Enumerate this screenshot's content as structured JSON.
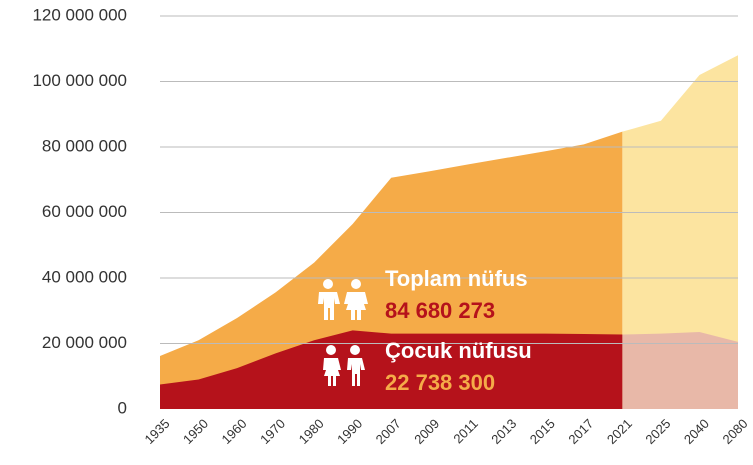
{
  "chart_data": {
    "type": "area",
    "categories": [
      "1935",
      "1950",
      "1960",
      "1970",
      "1980",
      "1990",
      "2007",
      "2009",
      "2011",
      "2013",
      "2015",
      "2017",
      "2021",
      "2025",
      "2040",
      "2080"
    ],
    "projection_from": "2021",
    "series": [
      {
        "name": "Toplam nüfus",
        "color": "#f5ab48",
        "projection_color": "#fce4a0",
        "label_color": "#b5121b",
        "values": [
          16200000,
          21000000,
          27800000,
          35600000,
          44700000,
          56500000,
          70600000,
          72600000,
          74700000,
          76700000,
          78700000,
          80800000,
          84680273,
          88000000,
          102000000,
          108000000
        ],
        "value_labels": [
          null,
          null,
          null,
          null,
          null,
          null,
          null,
          null,
          null,
          null,
          null,
          null,
          "84 680 273",
          null,
          null,
          null
        ]
      },
      {
        "name": "Çocuk nüfusu",
        "color": "#b5121b",
        "projection_color": "#e8b8a8",
        "label_color": "#f5ab48",
        "values": [
          7500000,
          9000000,
          12500000,
          17000000,
          21000000,
          24000000,
          23000000,
          23000000,
          23000000,
          23000000,
          23000000,
          22900000,
          22738300,
          23000000,
          23500000,
          20500000
        ],
        "value_labels": [
          null,
          null,
          null,
          null,
          null,
          null,
          null,
          null,
          null,
          null,
          null,
          null,
          "22 738 300",
          null,
          null,
          null
        ]
      }
    ],
    "ylim": [
      0,
      120000000
    ],
    "yticks": [
      0,
      {
        "value": 20000000,
        "label": "20 000 000"
      },
      {
        "value": 40000000,
        "label": "40 000 000"
      },
      {
        "value": 60000000,
        "label": "60 000 000"
      },
      {
        "value": 80000000,
        "label": "80 000 000"
      },
      {
        "value": 100000000,
        "label": "100 000 000"
      },
      {
        "value": 120000000,
        "label": "120 000 000"
      }
    ],
    "grid": true
  }
}
